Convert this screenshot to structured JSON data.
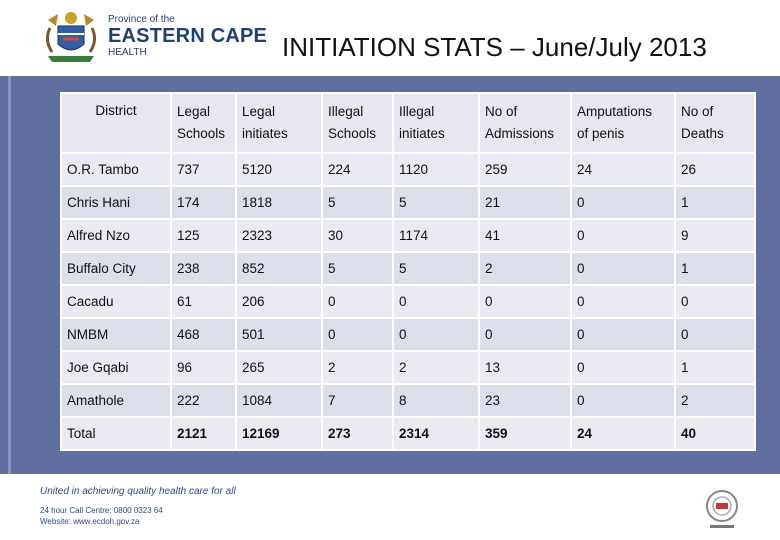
{
  "header": {
    "logo_line1": "Province of the",
    "logo_line2": "EASTERN CAPE",
    "logo_line3": "HEALTH",
    "title": "INITIATION STATS – June/July 2013"
  },
  "table": {
    "headers": [
      [
        "District"
      ],
      [
        "Legal",
        "Schools"
      ],
      [
        "Legal",
        "initiates"
      ],
      [
        "Illegal",
        "Schools"
      ],
      [
        "Illegal",
        "initiates"
      ],
      [
        "No of",
        "Admissions"
      ],
      [
        "Amputations",
        "of penis"
      ],
      [
        "No of",
        "Deaths"
      ]
    ],
    "rows": [
      [
        "O.R. Tambo",
        "737",
        "5120",
        "224",
        "1120",
        "259",
        "24",
        "26"
      ],
      [
        "Chris Hani",
        "174",
        "1818",
        "5",
        "5",
        "21",
        "0",
        "1"
      ],
      [
        "Alfred Nzo",
        "125",
        "2323",
        "30",
        "1174",
        "41",
        "0",
        "9"
      ],
      [
        "Buffalo City",
        "238",
        "852",
        "5",
        "5",
        "2",
        "0",
        "1"
      ],
      [
        "Cacadu",
        "61",
        "206",
        "0",
        "0",
        "0",
        "0",
        "0"
      ],
      [
        "NMBM",
        "468",
        "501",
        "0",
        "0",
        "0",
        "0",
        "0"
      ],
      [
        "Joe Gqabi",
        "96",
        "265",
        "2",
        "2",
        "13",
        "0",
        "1"
      ],
      [
        "Amathole",
        "222",
        "1084",
        "7",
        "8",
        "23",
        "0",
        "2"
      ],
      [
        "Total",
        "2121",
        "12169",
        "273",
        "2314",
        "359",
        "24",
        "40"
      ]
    ]
  },
  "footer": {
    "slogan": "United in achieving quality health care for all",
    "call_centre": "24 hour Call Centre: 0800 0323 64",
    "website": "Website: www.ecdoh.gov.za"
  },
  "colors": {
    "panel": "#5f6f9f",
    "brand_blue": "#1f3f7a"
  }
}
